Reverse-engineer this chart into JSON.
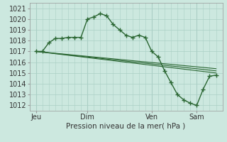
{
  "background_color": "#cce8df",
  "grid_color": "#aacfc5",
  "line_color": "#2a6632",
  "title": "Pression niveau de la mer( hPa )",
  "ylim": [
    1011.5,
    1021.5
  ],
  "yticks": [
    1012,
    1013,
    1014,
    1015,
    1016,
    1017,
    1018,
    1019,
    1020,
    1021
  ],
  "xmin": 0,
  "xmax": 30,
  "xtick_positions": [
    1,
    9,
    19,
    26
  ],
  "xtick_labels": [
    "Jeu",
    "Dim",
    "Ven",
    "Sam"
  ],
  "vlines": [
    1,
    9,
    19,
    26
  ],
  "main_x": [
    1,
    2,
    3,
    4,
    5,
    6,
    7,
    8,
    9,
    10,
    11,
    12,
    13,
    14,
    15,
    16,
    17,
    18,
    19,
    20,
    21,
    22,
    23,
    24,
    25,
    26,
    27,
    28,
    29
  ],
  "main_y": [
    1017.0,
    1017.0,
    1017.8,
    1018.2,
    1018.2,
    1018.3,
    1018.3,
    1018.3,
    1020.0,
    1020.2,
    1020.5,
    1020.3,
    1019.5,
    1019.0,
    1018.5,
    1018.3,
    1018.5,
    1018.3,
    1017.0,
    1016.5,
    1015.2,
    1014.1,
    1013.0,
    1012.5,
    1012.2,
    1012.0,
    1013.5,
    1014.7,
    1014.8
  ],
  "trend1_x": [
    1,
    29
  ],
  "trend1_y": [
    1017.0,
    1015.0
  ],
  "trend2_x": [
    1,
    29
  ],
  "trend2_y": [
    1017.0,
    1015.2
  ],
  "trend3_x": [
    1,
    29
  ],
  "trend3_y": [
    1017.0,
    1015.4
  ]
}
